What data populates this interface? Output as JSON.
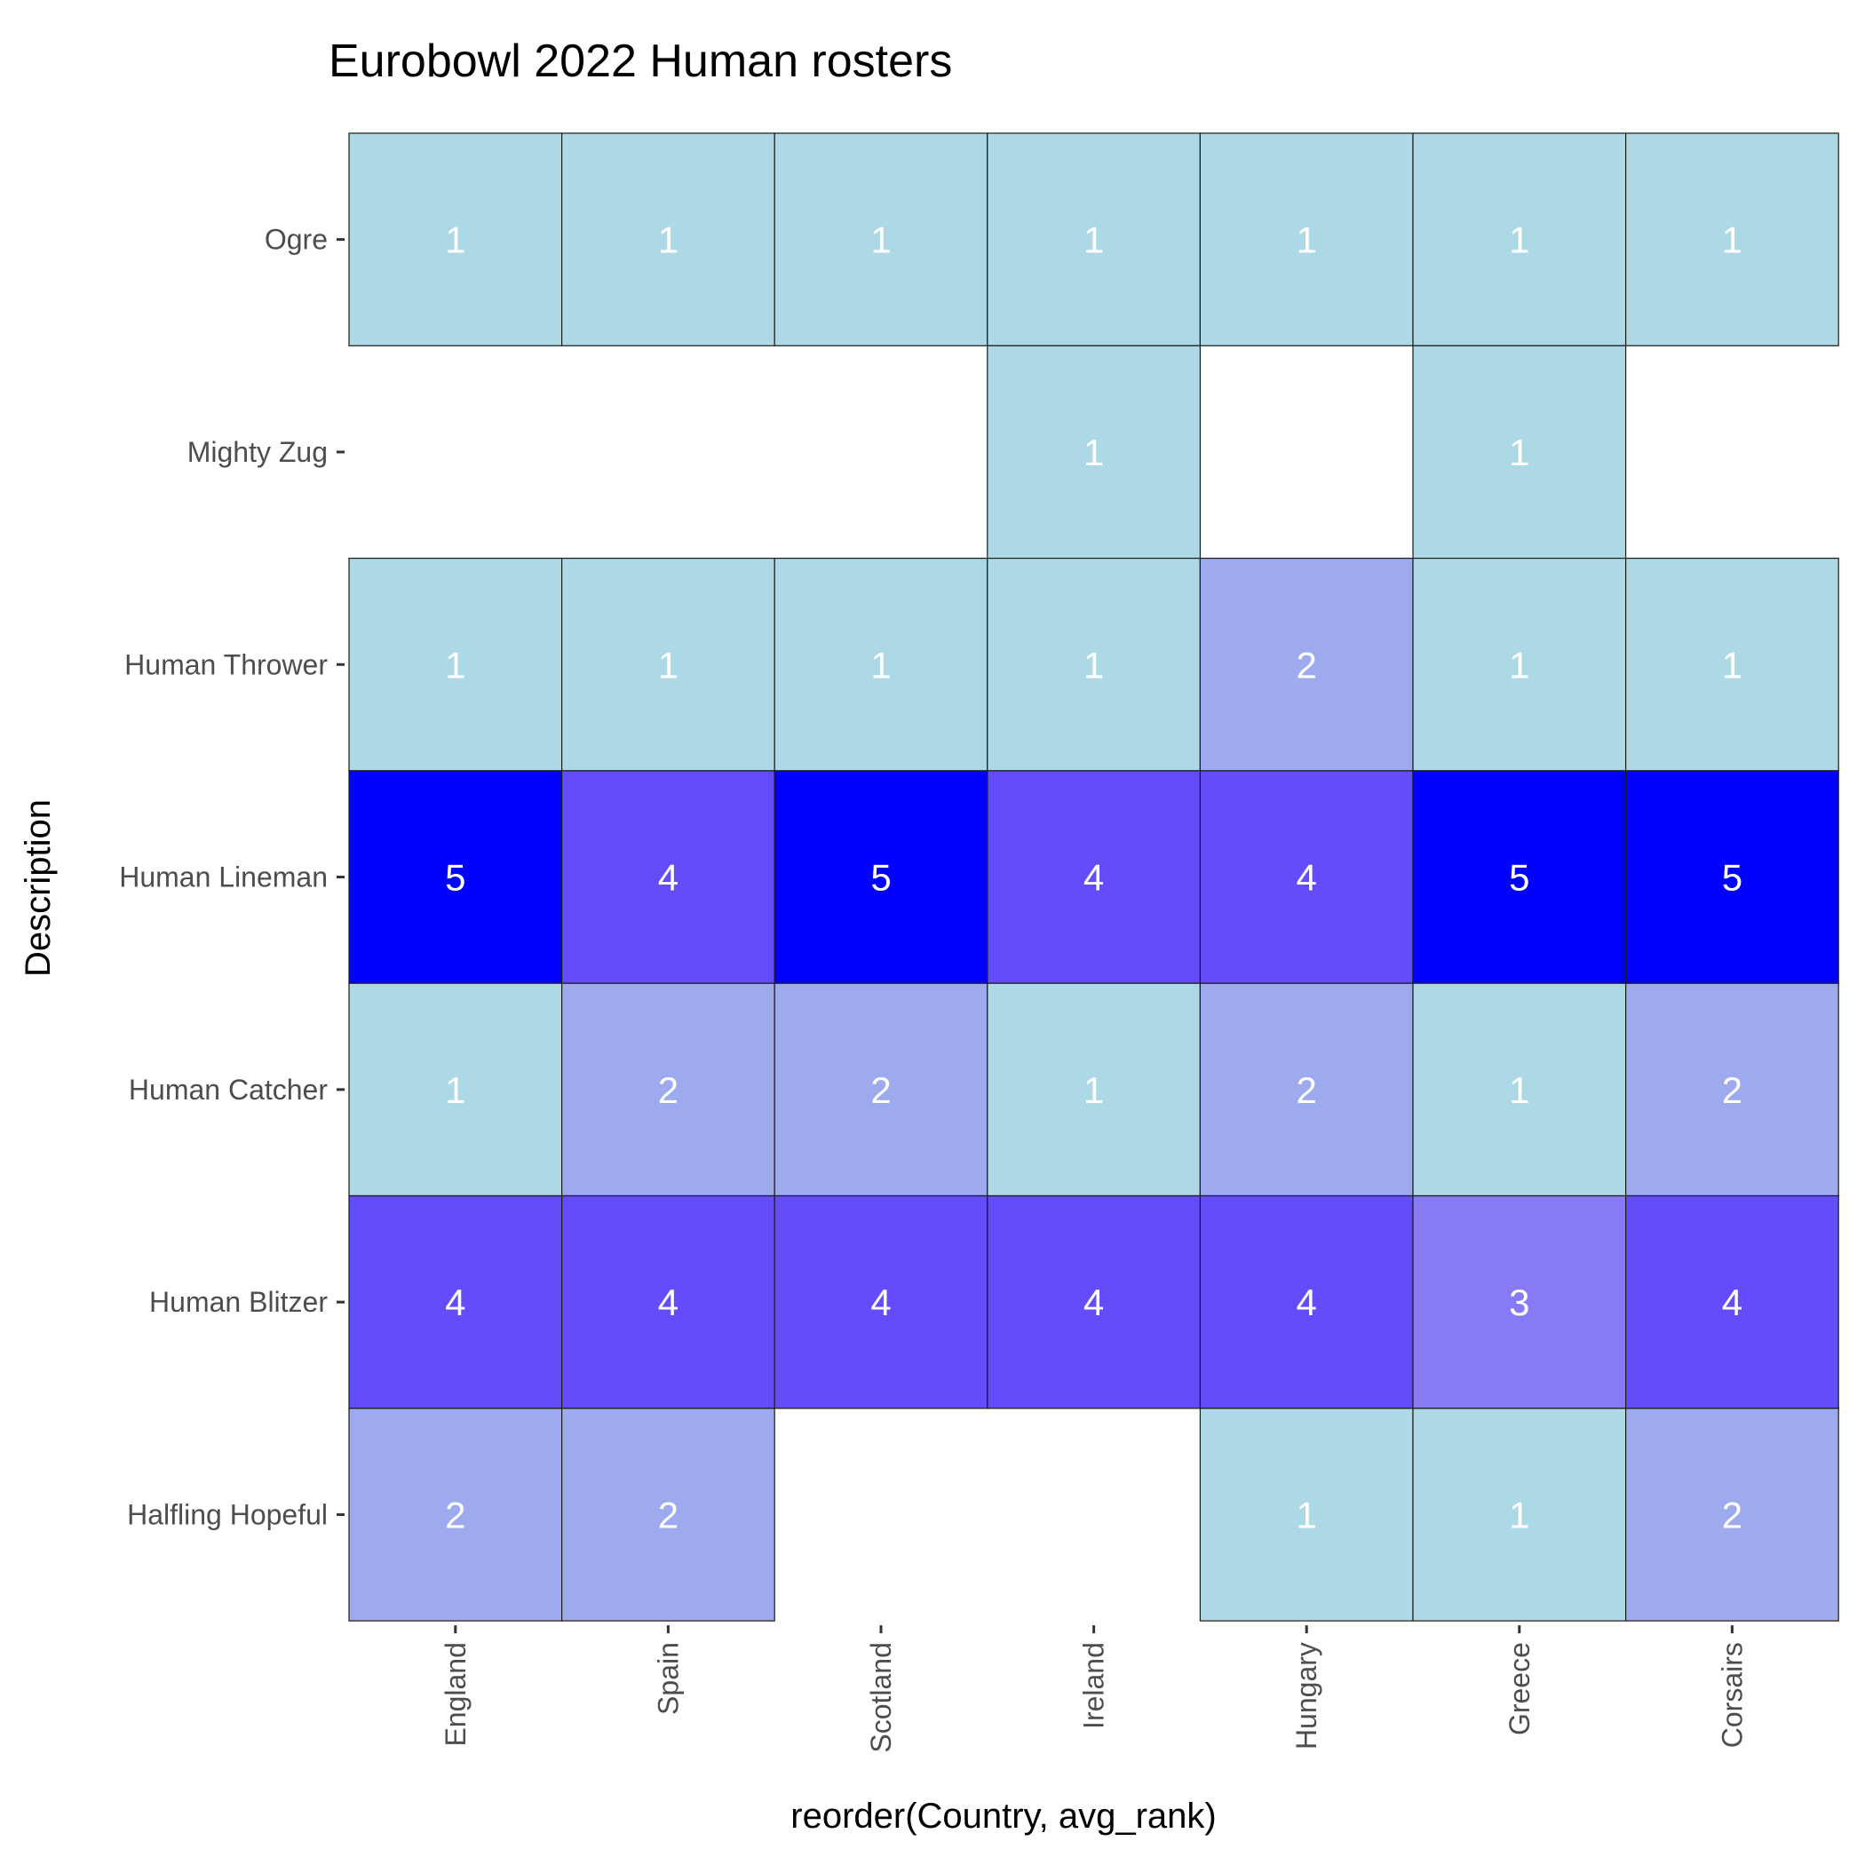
{
  "chart_data": {
    "type": "heatmap",
    "title": "Eurobowl 2022 Human rosters",
    "xlabel": "reorder(Country, avg_rank)",
    "ylabel": "Description",
    "x_categories": [
      "England",
      "Spain",
      "Scotland",
      "Ireland",
      "Hungary",
      "Greece",
      "Corsairs"
    ],
    "y_categories": [
      "Ogre",
      "Mighty Zug",
      "Human Thrower",
      "Human Lineman",
      "Human Catcher",
      "Human Blitzer",
      "Halfling Hopeful"
    ],
    "values": [
      [
        1,
        1,
        1,
        1,
        1,
        1,
        1
      ],
      [
        null,
        null,
        null,
        1,
        null,
        1,
        null
      ],
      [
        1,
        1,
        1,
        1,
        2,
        1,
        1
      ],
      [
        5,
        4,
        5,
        4,
        4,
        5,
        5
      ],
      [
        1,
        2,
        2,
        1,
        2,
        1,
        2
      ],
      [
        4,
        4,
        4,
        4,
        4,
        3,
        4
      ],
      [
        2,
        2,
        null,
        null,
        1,
        1,
        2
      ]
    ],
    "color_scale": {
      "1": "#add8e6",
      "2": "#9eaaee",
      "3": "#877bf5",
      "4": "#634dfa",
      "5": "#0000ff"
    },
    "grid": false,
    "legend": "none"
  }
}
